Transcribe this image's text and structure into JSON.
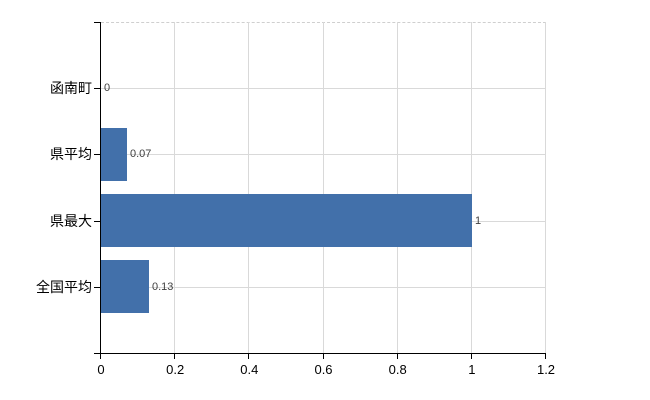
{
  "chart_data": {
    "type": "bar",
    "orientation": "horizontal",
    "title": "",
    "xlabel": "",
    "ylabel": "",
    "categories": [
      "函南町",
      "県平均",
      "県最大",
      "全国平均"
    ],
    "values": [
      0,
      0.07,
      1,
      0.13
    ],
    "data_labels": [
      "0",
      "0.07",
      "1",
      "0.13"
    ],
    "x_tick_labels": [
      "0",
      "0.2",
      "0.4",
      "0.6",
      "0.8",
      "1",
      "1.2"
    ],
    "x_tick_values": [
      0,
      0.2,
      0.4,
      0.6,
      0.8,
      1,
      1.2
    ],
    "xlim": [
      0,
      1.2
    ],
    "grid": true,
    "legend": false,
    "colors": {
      "bar": "#4270aa",
      "gridline": "#d9d9d9",
      "axis": "#000000",
      "data_label": "#404040",
      "tick_label": "#000000",
      "background": "#ffffff"
    }
  }
}
